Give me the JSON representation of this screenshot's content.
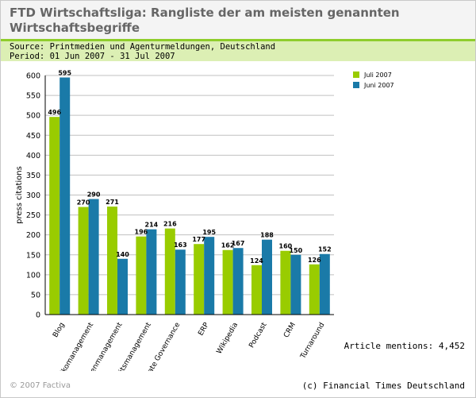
{
  "header": {
    "title": "FTD Wirtschaftsliga: Rangliste der am meisten genannten Wirtschaftsbegriffe"
  },
  "meta": {
    "source": "Source: Printmedien und Agenturmeldungen, Deutschland",
    "period": "Period: 01 Jun 2007 - 31 Jul 2007"
  },
  "footer": {
    "mentions_label": "Article mentions:",
    "mentions_value": "4,452",
    "copyright": "© 2007 Factiva",
    "credit": "(c) Financial Times Deutschland"
  },
  "colors": {
    "series_juli": "#99cc00",
    "series_juni": "#1a7aa8",
    "header_accent": "#8fcd2c"
  },
  "chart_data": {
    "type": "bar",
    "title": "",
    "xlabel": "",
    "ylabel": "press citations",
    "ylim": [
      0,
      600
    ],
    "yticks": [
      0,
      50,
      100,
      150,
      200,
      250,
      300,
      350,
      400,
      450,
      500,
      550,
      600
    ],
    "grid": true,
    "legend": "top-right",
    "categories": [
      "Blog",
      "Risikomanagement",
      "Krisenmanagement",
      "Qualitätsmanagement",
      "Corporate Governance",
      "ERP",
      "Wikipedia",
      "Podcast",
      "CRM",
      "Turnaround"
    ],
    "series": [
      {
        "name": "Juli 2007",
        "values": [
          496,
          270,
          271,
          196,
          216,
          177,
          162,
          124,
          160,
          126
        ]
      },
      {
        "name": "Juni 2007",
        "values": [
          595,
          290,
          140,
          214,
          163,
          195,
          167,
          188,
          150,
          152
        ]
      }
    ]
  }
}
